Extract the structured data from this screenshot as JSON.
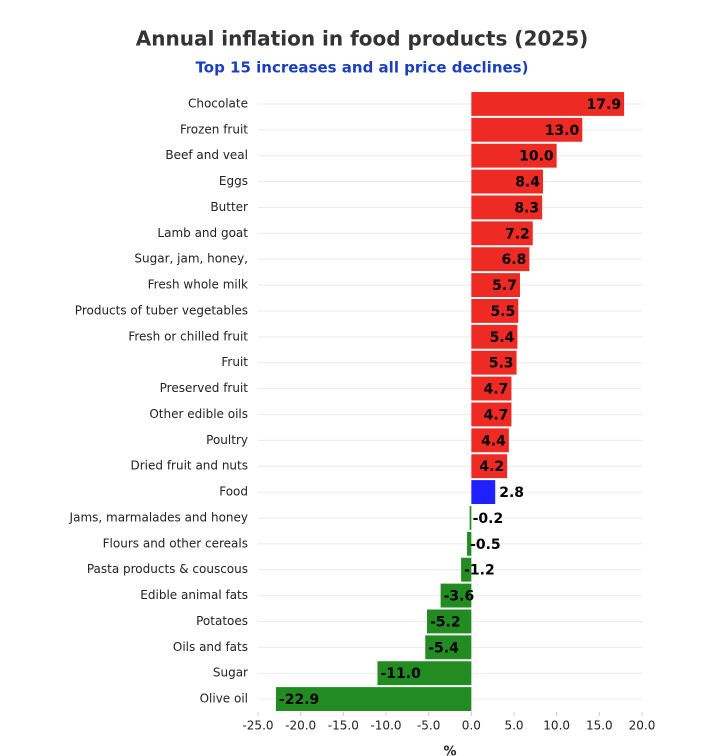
{
  "chart_data": {
    "type": "bar",
    "orientation": "horizontal",
    "title": "Annual inflation in food products (2025)",
    "subtitle": "Top 15 increases and all price declines)",
    "x_label": "%",
    "categories": [
      "Chocolate",
      "Frozen fruit",
      "Beef and veal",
      "Eggs",
      "Butter",
      "Lamb and goat",
      "Sugar, jam, honey,",
      "Fresh whole milk",
      "Products of tuber vegetables",
      "Fresh or chilled fruit",
      "Fruit",
      "Preserved fruit",
      "Other edible oils",
      "Poultry",
      "Dried fruit and nuts",
      "Food",
      "Jams, marmalades and honey",
      "Flours and other cereals",
      "Pasta products & couscous",
      "Edible animal fats",
      "Potatoes",
      "Oils and fats",
      "Sugar",
      "Olive oil"
    ],
    "values": [
      17.9,
      13.0,
      10.0,
      8.4,
      8.3,
      7.2,
      6.8,
      5.7,
      5.5,
      5.4,
      5.3,
      4.7,
      4.7,
      4.4,
      4.2,
      2.8,
      -0.2,
      -0.5,
      -1.2,
      -3.6,
      -5.2,
      -5.4,
      -11.0,
      -22.9
    ],
    "value_labels": [
      "17.9",
      "13.0",
      "10.0",
      "8.4",
      "8.3",
      "7.2",
      "6.8",
      "5.7",
      "5.5",
      "5.4",
      "5.3",
      "4.7",
      "4.7",
      "4.4",
      "4.2",
      "2.8",
      "-0.2",
      "-0.5",
      "-1.2",
      "-3.6",
      "-5.2",
      "-5.4",
      "-11.0",
      "-22.9"
    ],
    "colors": [
      "#ee2a24",
      "#ee2a24",
      "#ee2a24",
      "#ee2a24",
      "#ee2a24",
      "#ee2a24",
      "#ee2a24",
      "#ee2a24",
      "#ee2a24",
      "#ee2a24",
      "#ee2a24",
      "#ee2a24",
      "#ee2a24",
      "#ee2a24",
      "#ee2a24",
      "#1f1fff",
      "#228b22",
      "#228b22",
      "#228b22",
      "#228b22",
      "#228b22",
      "#228b22",
      "#228b22",
      "#228b22"
    ],
    "xlim": [
      -25,
      20
    ],
    "xticks": [
      {
        "value": -25,
        "label": "-25.0"
      },
      {
        "value": -20,
        "label": "-20.0"
      },
      {
        "value": -15,
        "label": "-15.0"
      },
      {
        "value": -10,
        "label": "-10.0"
      },
      {
        "value": -5,
        "label": "-5.0"
      },
      {
        "value": 0,
        "label": "0.0"
      },
      {
        "value": 5,
        "label": "5.0"
      },
      {
        "value": 10,
        "label": "10.0"
      },
      {
        "value": 15,
        "label": "15.0"
      },
      {
        "value": 20,
        "label": "20.0"
      }
    ]
  }
}
